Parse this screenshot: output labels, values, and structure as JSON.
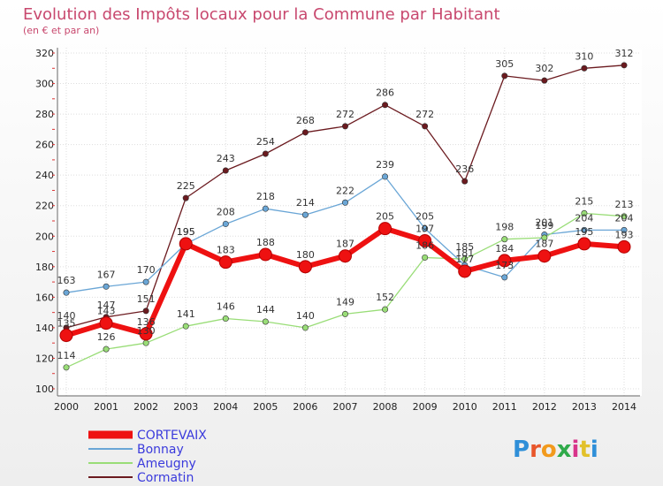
{
  "chart_data": {
    "type": "line",
    "title": "Evolution des Impôts locaux pour la Commune par Habitant",
    "subtitle": "(en € et par an)",
    "xlabel": "",
    "ylabel": "",
    "ylim": [
      100,
      320
    ],
    "yticks": [
      100,
      120,
      140,
      160,
      180,
      200,
      220,
      240,
      260,
      280,
      300,
      320
    ],
    "categories": [
      "2000",
      "2001",
      "2002",
      "2003",
      "2004",
      "2005",
      "2006",
      "2007",
      "2008",
      "2009",
      "2010",
      "2011",
      "2012",
      "2013",
      "2014"
    ],
    "grid": true,
    "legend_position": "bottom-left",
    "series": [
      {
        "name": "Cormatin",
        "color": "#6b1a1f",
        "values": [
          140,
          147,
          151,
          225,
          243,
          254,
          268,
          272,
          286,
          272,
          236,
          305,
          302,
          310,
          312
        ]
      },
      {
        "name": "Bonnay",
        "color": "#6aa6d6",
        "values": [
          163,
          167,
          170,
          195,
          208,
          218,
          214,
          222,
          239,
          205,
          181,
          173,
          201,
          204,
          204
        ]
      },
      {
        "name": "Ameugny",
        "color": "#99dd77",
        "values": [
          114,
          126,
          130,
          141,
          146,
          144,
          140,
          149,
          152,
          186,
          185,
          198,
          199,
          215,
          213
        ]
      },
      {
        "name": "CORTEVAIX",
        "color": "#ee1111",
        "values": [
          135,
          143,
          136,
          195,
          183,
          188,
          180,
          187,
          205,
          197,
          177,
          184,
          187,
          195,
          193
        ]
      }
    ],
    "legend": [
      "CORTEVAIX",
      "Bonnay",
      "Ameugny",
      "Cormatin"
    ]
  },
  "logo": {
    "text": "Proxiti"
  }
}
